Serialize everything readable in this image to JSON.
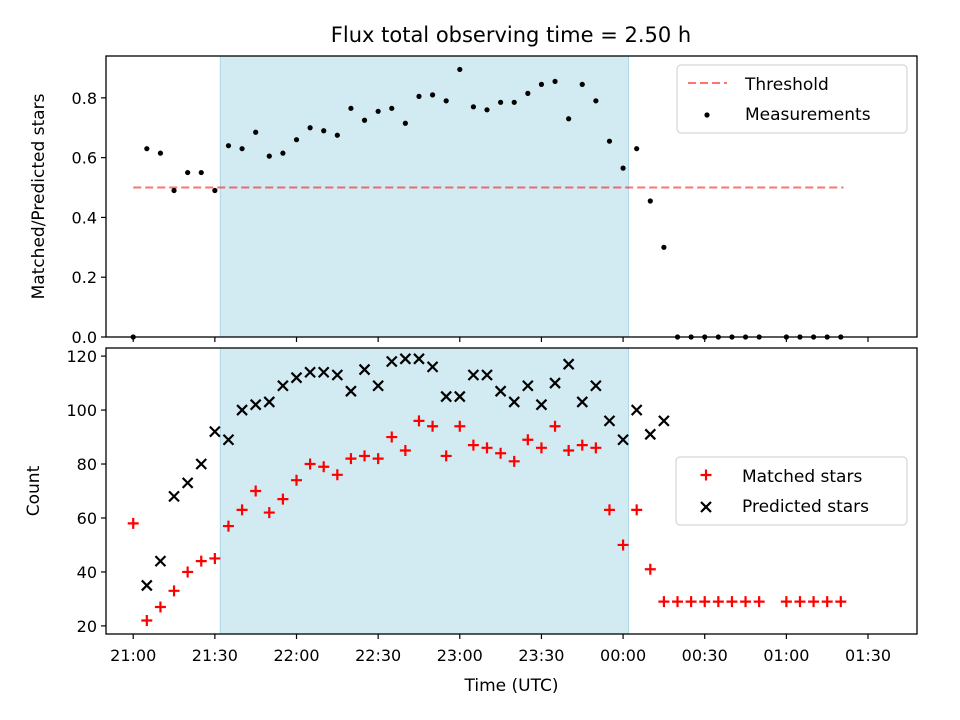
{
  "title": "Flux total observing time = 2.50 h",
  "colors": {
    "shade": "#add8e6",
    "threshold": "#ff0000",
    "matched": "#ff0000",
    "predicted": "#000000",
    "measurement": "#000000"
  },
  "chart_data": [
    {
      "type": "scatter",
      "ylabel": "Matched/Predicted stars",
      "ylim": [
        0,
        0.94
      ],
      "yticks": [
        0.0,
        0.2,
        0.4,
        0.6,
        0.8
      ],
      "ytick_labels": [
        "0.0",
        "0.2",
        "0.4",
        "0.6",
        "0.8"
      ],
      "xlim": [
        -10,
        288
      ],
      "highlight_span": [
        32,
        182
      ],
      "legend": {
        "position": "upper right",
        "entries": [
          "Threshold",
          "Measurements"
        ]
      },
      "threshold": {
        "name": "Threshold",
        "y": 0.5,
        "x_from": 0,
        "x_to": 261
      },
      "series": [
        {
          "name": "Measurements",
          "marker": "dot",
          "x": [
            0,
            5,
            10,
            15,
            20,
            25,
            30,
            35,
            40,
            45,
            50,
            55,
            60,
            65,
            70,
            75,
            80,
            85,
            90,
            95,
            100,
            105,
            110,
            115,
            120,
            125,
            130,
            135,
            140,
            145,
            150,
            155,
            160,
            165,
            170,
            175,
            180,
            185,
            190,
            195,
            200,
            205,
            210,
            215,
            220,
            225,
            230,
            240,
            245,
            250,
            255,
            260
          ],
          "y": [
            0.0,
            0.63,
            0.615,
            0.49,
            0.55,
            0.55,
            0.49,
            0.64,
            0.63,
            0.685,
            0.605,
            0.615,
            0.66,
            0.7,
            0.69,
            0.675,
            0.765,
            0.725,
            0.755,
            0.765,
            0.715,
            0.805,
            0.81,
            0.79,
            0.895,
            0.77,
            0.76,
            0.785,
            0.785,
            0.815,
            0.845,
            0.855,
            0.73,
            0.845,
            0.79,
            0.655,
            0.565,
            0.63,
            0.455,
            0.3,
            0.0,
            0.0,
            0.0,
            0.0,
            0.0,
            0.0,
            0.0,
            0.0,
            0.0,
            0.0,
            0.0,
            0.0
          ]
        }
      ]
    },
    {
      "type": "scatter",
      "ylabel": "Count",
      "xlabel": "Time (UTC)",
      "ylim": [
        17,
        123
      ],
      "yticks": [
        20,
        40,
        60,
        80,
        100,
        120
      ],
      "ytick_labels": [
        "20",
        "40",
        "60",
        "80",
        "100",
        "120"
      ],
      "xlim": [
        -10,
        288
      ],
      "xticks": [
        0,
        30,
        60,
        90,
        120,
        150,
        180,
        210,
        240,
        270
      ],
      "xtick_labels": [
        "21:00",
        "21:30",
        "22:00",
        "22:30",
        "23:00",
        "23:30",
        "00:00",
        "00:30",
        "01:00",
        "01:30"
      ],
      "highlight_span": [
        32,
        182
      ],
      "legend": {
        "position": "center right",
        "entries": [
          "Matched stars",
          "Predicted stars"
        ]
      },
      "series": [
        {
          "name": "Matched stars",
          "marker": "plus",
          "x": [
            0,
            5,
            10,
            15,
            20,
            25,
            30,
            35,
            40,
            45,
            50,
            55,
            60,
            65,
            70,
            75,
            80,
            85,
            90,
            95,
            100,
            105,
            110,
            115,
            120,
            125,
            130,
            135,
            140,
            145,
            150,
            155,
            160,
            165,
            170,
            175,
            180,
            185,
            190,
            195,
            200,
            205,
            210,
            215,
            220,
            225,
            230,
            240,
            245,
            250,
            255,
            260
          ],
          "y": [
            58,
            22,
            27,
            33,
            40,
            44,
            45,
            57,
            63,
            70,
            62,
            67,
            74,
            80,
            79,
            76,
            82,
            83,
            82,
            90,
            85,
            96,
            94,
            83,
            94,
            87,
            86,
            84,
            81,
            89,
            86,
            94,
            85,
            87,
            86,
            63,
            50,
            63,
            41,
            29,
            29,
            29,
            29,
            29,
            29,
            29,
            29,
            29,
            29,
            29,
            29,
            29
          ]
        },
        {
          "name": "Predicted stars",
          "marker": "x",
          "x": [
            5,
            10,
            15,
            20,
            25,
            30,
            35,
            40,
            45,
            50,
            55,
            60,
            65,
            70,
            75,
            80,
            85,
            90,
            95,
            100,
            105,
            110,
            115,
            120,
            125,
            130,
            135,
            140,
            145,
            150,
            155,
            160,
            165,
            170,
            175,
            180,
            185,
            190,
            195
          ],
          "y": [
            35,
            44,
            68,
            73,
            80,
            92,
            89,
            100,
            102,
            103,
            109,
            112,
            114,
            114,
            113,
            107,
            115,
            109,
            118,
            119,
            119,
            116,
            105,
            105,
            113,
            113,
            107,
            103,
            109,
            102,
            110,
            117,
            103,
            109,
            96,
            89,
            100,
            91,
            96
          ]
        }
      ]
    }
  ]
}
